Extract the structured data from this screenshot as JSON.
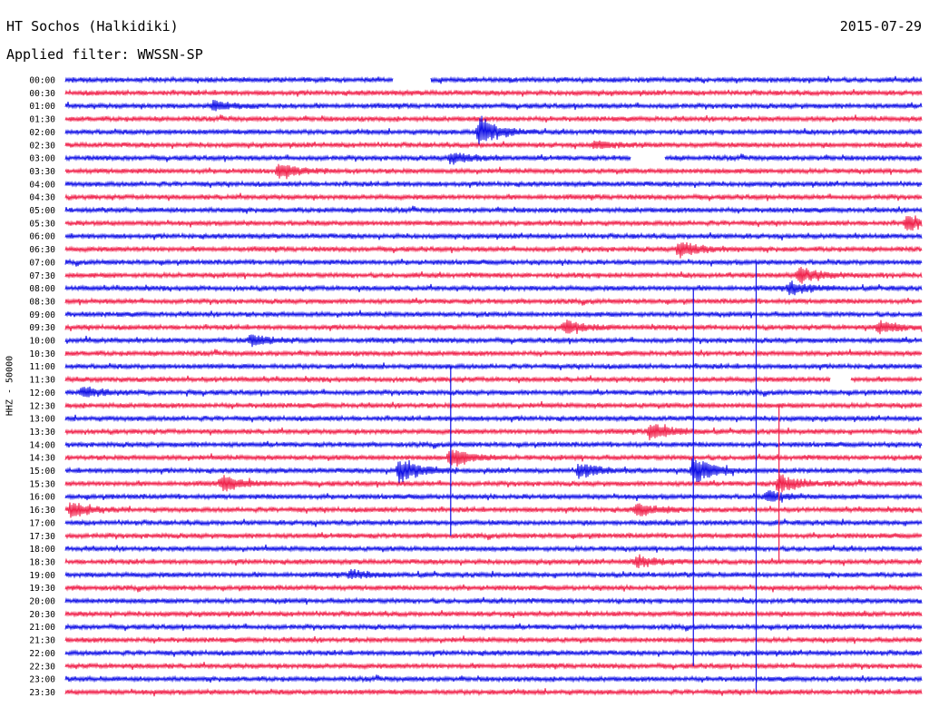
{
  "header": {
    "station": "HT Sochos (Halkidiki)",
    "date": "2015-07-29",
    "filter": "Applied filter: WWSSN-SP"
  },
  "channel_label": "HHZ - 50000",
  "colors": {
    "blue": "#1010e6",
    "red": "#f0204a"
  },
  "chart_data": {
    "type": "line",
    "subtype": "helicorder",
    "rows": [
      "00:00",
      "00:30",
      "01:00",
      "01:30",
      "02:00",
      "02:30",
      "03:00",
      "03:30",
      "04:00",
      "04:30",
      "05:00",
      "05:30",
      "06:00",
      "06:30",
      "07:00",
      "07:30",
      "08:00",
      "08:30",
      "09:00",
      "09:30",
      "10:00",
      "10:30",
      "11:00",
      "11:30",
      "12:00",
      "12:30",
      "13:00",
      "13:30",
      "14:00",
      "14:30",
      "15:00",
      "15:30",
      "16:00",
      "16:30",
      "17:00",
      "17:30",
      "18:00",
      "18:30",
      "19:00",
      "19:30",
      "20:00",
      "20:30",
      "21:00",
      "21:30",
      "22:00",
      "22:30",
      "23:00",
      "23:30"
    ],
    "row_colors": [
      "blue",
      "red"
    ],
    "minutes_per_row": 30,
    "events": [
      {
        "row": 4,
        "minute": 14.5,
        "amplitude": 1.8
      },
      {
        "row": 2,
        "minute": 5.2,
        "amplitude": 0.6
      },
      {
        "row": 6,
        "minute": 13.5,
        "amplitude": 0.7
      },
      {
        "row": 7,
        "minute": 7.5,
        "amplitude": 0.9
      },
      {
        "row": 5,
        "minute": 18.5,
        "amplitude": 0.5
      },
      {
        "row": 11,
        "minute": 29.5,
        "amplitude": 1.0
      },
      {
        "row": 13,
        "minute": 21.5,
        "amplitude": 1.0
      },
      {
        "row": 15,
        "minute": 25.7,
        "amplitude": 1.0
      },
      {
        "row": 16,
        "minute": 25.4,
        "amplitude": 0.8
      },
      {
        "row": 19,
        "minute": 17.5,
        "amplitude": 0.9
      },
      {
        "row": 19,
        "minute": 28.5,
        "amplitude": 0.8
      },
      {
        "row": 20,
        "minute": 6.5,
        "amplitude": 0.7
      },
      {
        "row": 24,
        "minute": 0.6,
        "amplitude": 0.6
      },
      {
        "row": 27,
        "minute": 20.5,
        "amplitude": 1.1
      },
      {
        "row": 29,
        "minute": 13.5,
        "amplitude": 1.2
      },
      {
        "row": 30,
        "minute": 11.7,
        "amplitude": 1.6
      },
      {
        "row": 30,
        "minute": 18.0,
        "amplitude": 1.0
      },
      {
        "row": 30,
        "minute": 22.0,
        "amplitude": 1.8
      },
      {
        "row": 31,
        "minute": 5.5,
        "amplitude": 1.0
      },
      {
        "row": 31,
        "minute": 25.0,
        "amplitude": 1.2
      },
      {
        "row": 32,
        "minute": 24.6,
        "amplitude": 0.7
      },
      {
        "row": 33,
        "minute": 0.2,
        "amplitude": 1.0
      },
      {
        "row": 33,
        "minute": 20.0,
        "amplitude": 0.8
      },
      {
        "row": 37,
        "minute": 20.0,
        "amplitude": 0.8
      },
      {
        "row": 38,
        "minute": 10.0,
        "amplitude": 0.5
      }
    ],
    "spikes": [
      {
        "minute": 13.5,
        "from_row": 22,
        "to_row": 35
      },
      {
        "minute": 22.0,
        "from_row": 16,
        "to_row": 45
      },
      {
        "minute": 24.2,
        "from_row": 14,
        "to_row": 47
      },
      {
        "minute": 25.0,
        "from_row": 25,
        "to_row": 37
      }
    ],
    "gaps": [
      {
        "row": 0,
        "start_minute": 11.5,
        "end_minute": 12.8
      },
      {
        "row": 6,
        "start_minute": 19.8,
        "end_minute": 21.0
      },
      {
        "row": 23,
        "start_minute": 26.8,
        "end_minute": 27.5
      }
    ]
  }
}
